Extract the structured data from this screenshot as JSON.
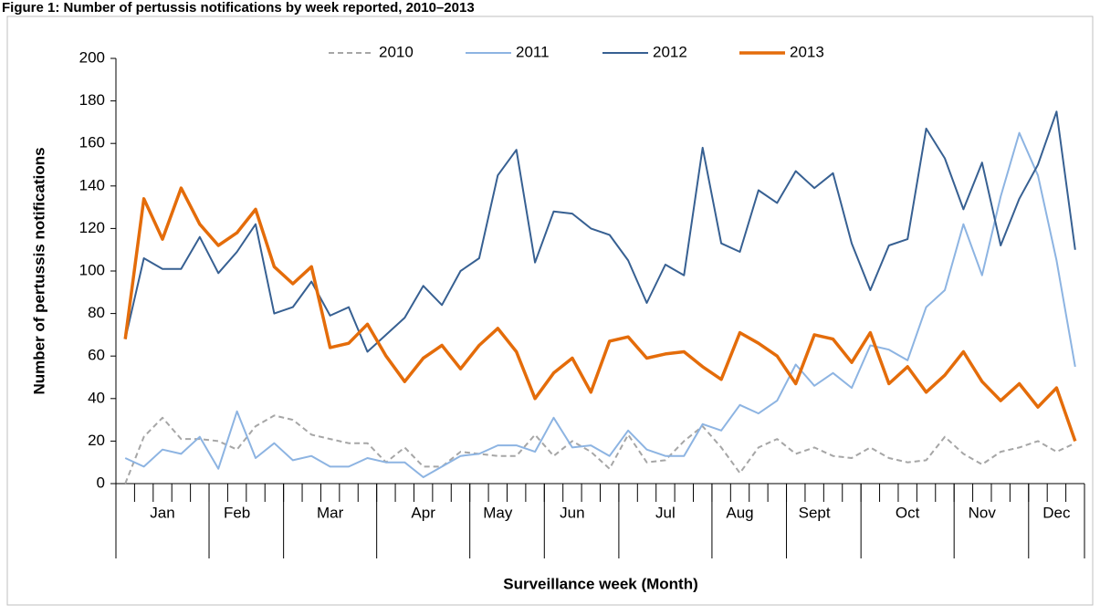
{
  "chart_data": {
    "type": "line",
    "title": "Figure 1: Number of pertussis notifications by week reported, 2010–2013",
    "x_label": "Surveillance week (Month)",
    "y_label": "Number of pertussis notifications",
    "categories": [
      null,
      null,
      "Jan",
      null,
      null,
      null,
      "Feb",
      null,
      null,
      null,
      null,
      "Mar",
      null,
      null,
      null,
      null,
      "Apr",
      null,
      null,
      null,
      "May",
      null,
      null,
      null,
      "Jun",
      null,
      null,
      null,
      null,
      "Jul",
      null,
      null,
      null,
      "Aug",
      null,
      null,
      null,
      "Sept",
      null,
      null,
      null,
      null,
      "Oct",
      null,
      null,
      null,
      "Nov",
      null,
      null,
      null,
      "Dec",
      null
    ],
    "ylim": [
      0,
      200
    ],
    "yticks": [
      0,
      20,
      40,
      60,
      80,
      100,
      120,
      140,
      160,
      180,
      200
    ],
    "grid": false,
    "legend": "top",
    "series": [
      {
        "name": "2010",
        "color": "#a6a6a6",
        "dashed": true,
        "values": [
          0,
          22,
          31,
          21,
          21,
          20,
          16,
          27,
          32,
          30,
          23,
          21,
          19,
          19,
          10,
          17,
          8,
          8,
          15,
          14,
          13,
          13,
          23,
          13,
          20,
          15,
          7,
          23,
          10,
          11,
          20,
          27,
          17,
          5,
          17,
          21,
          14,
          17,
          13,
          12,
          17,
          12,
          10,
          11,
          22,
          14,
          9,
          15,
          17,
          20,
          15,
          19
        ]
      },
      {
        "name": "2011",
        "color": "#8db4e2",
        "values": [
          12,
          8,
          16,
          14,
          22,
          7,
          34,
          12,
          19,
          11,
          13,
          8,
          8,
          12,
          10,
          10,
          3,
          8,
          13,
          14,
          18,
          18,
          15,
          31,
          17,
          18,
          13,
          25,
          16,
          13,
          13,
          28,
          25,
          37,
          33,
          39,
          56,
          46,
          52,
          45,
          65,
          63,
          58,
          83,
          91,
          122,
          98,
          135,
          165,
          145,
          105,
          55
        ]
      },
      {
        "name": "2012",
        "color": "#376092",
        "values": [
          68,
          106,
          101,
          101,
          116,
          99,
          109,
          122,
          80,
          83,
          95,
          79,
          83,
          62,
          70,
          78,
          93,
          84,
          100,
          106,
          145,
          157,
          104,
          128,
          127,
          120,
          117,
          105,
          85,
          103,
          98,
          158,
          113,
          109,
          138,
          132,
          147,
          139,
          146,
          113,
          91,
          112,
          115,
          167,
          153,
          129,
          151,
          112,
          134,
          150,
          175,
          110
        ]
      },
      {
        "name": "2013",
        "color": "#e46c0a",
        "width": 3.5,
        "values": [
          68,
          134,
          115,
          139,
          122,
          112,
          118,
          129,
          102,
          94,
          102,
          64,
          66,
          75,
          60,
          48,
          59,
          65,
          54,
          65,
          73,
          62,
          40,
          52,
          59,
          43,
          67,
          69,
          59,
          61,
          62,
          55,
          49,
          71,
          66,
          60,
          47,
          70,
          68,
          57,
          71,
          47,
          55,
          43,
          51,
          62,
          48,
          39,
          47,
          36,
          45,
          20
        ]
      }
    ]
  }
}
